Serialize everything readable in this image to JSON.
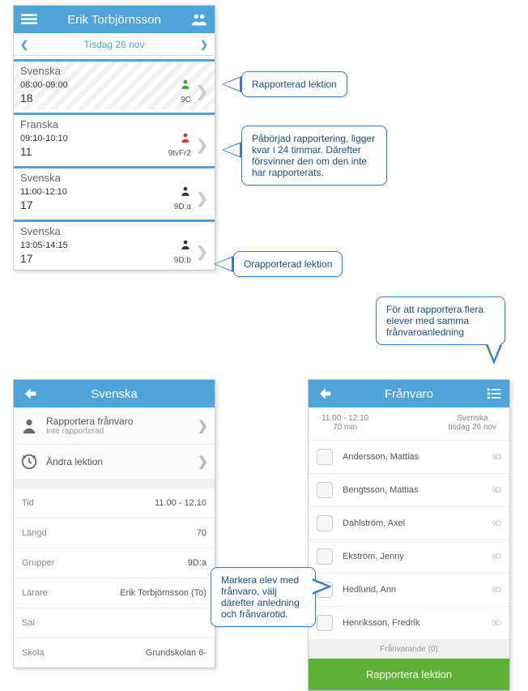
{
  "phone1": {
    "header_title": "Erik Torbjörnsson",
    "date": "Tisdag 26 nov",
    "lessons": [
      {
        "name": "Svenska",
        "time": "08:00-09:00",
        "count": "18",
        "group": "9C",
        "status": "done",
        "hatched": true
      },
      {
        "name": "Franska",
        "time": "09:10-10:10",
        "count": "11",
        "group": "9tvFr2",
        "status": "progress",
        "hatched": false
      },
      {
        "name": "Svenska",
        "time": "11:00-12:10",
        "count": "17",
        "group": "9D:a",
        "status": "none",
        "hatched": false
      },
      {
        "name": "Svenska",
        "time": "13:05-14:15",
        "count": "17",
        "group": "9D:b",
        "status": "none",
        "hatched": false
      }
    ]
  },
  "phone2": {
    "header_title": "Svenska",
    "menu": {
      "report": {
        "t": "Rapportera frånvaro",
        "s": "Inte rapporterad"
      },
      "edit": {
        "t": "Ändra lektion"
      }
    },
    "details": [
      {
        "label": "Tid",
        "value": "11.00 - 12.10"
      },
      {
        "label": "Längd",
        "value": "70"
      },
      {
        "label": "Grupper",
        "value": "9D:a"
      },
      {
        "label": "Lärare",
        "value": "Erik Torbjörnsson (To)"
      },
      {
        "label": "Sal",
        "value": ""
      },
      {
        "label": "Skola",
        "value": "Grundskolan 6-"
      }
    ]
  },
  "phone3": {
    "header_title": "Frånvaro",
    "sub": {
      "time": "11.00 - 12.10",
      "dur": "70 min",
      "subj": "Svenska",
      "date": "tisdag 26 nov"
    },
    "students": [
      {
        "n": "Andersson, Mattias",
        "g": "9D"
      },
      {
        "n": "Bengtsson, Mattias",
        "g": "9D"
      },
      {
        "n": "Dahlström, Axel",
        "g": "9D"
      },
      {
        "n": "Ekström, Jenny",
        "g": "9D"
      },
      {
        "n": "Hedlund, Ann",
        "g": "9D"
      },
      {
        "n": "Henriksson, Fredrik",
        "g": "9D"
      }
    ],
    "absent_label": "Frånvarande (0)",
    "button": "Rapportera lektion"
  },
  "callouts": {
    "c1": "Rapporterad lektion",
    "c2": "Påbörjad rapportering, ligger kvar i 24 timmar. Därefter försvinner den om den inte har rapporterats.",
    "c3": "Orapporterad lektion",
    "c4": "För att rapportera flera elever med samma frånvaroanledning",
    "c5": "Markera elev med frånvaro, välj därefter anledning och frånvarotid."
  },
  "colors": {
    "header": "#4ea3d9",
    "callout_border": "#3a7ec0",
    "green": "#5eb135",
    "icon_done": "#3aa63a",
    "icon_progress": "#d03030",
    "icon_none": "#333333"
  }
}
